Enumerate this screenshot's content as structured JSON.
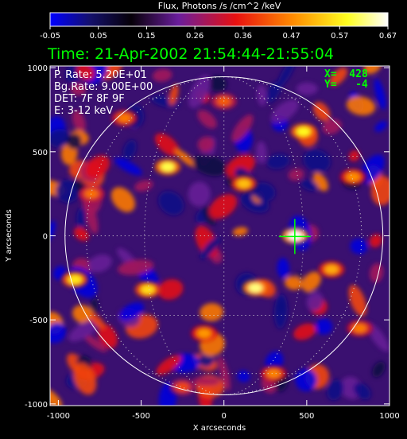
{
  "colorbar": {
    "title": "Flux, Photons /s /cm^2 /keV",
    "ticks": [
      "-0.05",
      "0.05",
      "0.15",
      "0.26",
      "0.36",
      "0.47",
      "0.57",
      "0.67"
    ]
  },
  "time_label": "Time: 21-Apr-2002 21:54:44-21:55:04",
  "info": {
    "p_rate": "P. Rate:  5.20E+01",
    "bg_rate": "Bg.Rate:  9.00E+00",
    "det": "DET: 7F 8F 9F",
    "energy": "E: 3-12 keV"
  },
  "cursor": {
    "x_label": "X=  428",
    "y_label": "Y=   -4"
  },
  "chart_data": {
    "type": "heatmap",
    "title": "Flux, Photons /s /cm^2 /keV",
    "xlabel": "X arcseconds",
    "ylabel": "Y arcseconds",
    "xlim": [
      -1050,
      1000
    ],
    "ylim": [
      -1010,
      1010
    ],
    "x_ticks": [
      "-1000",
      "-500",
      "0",
      "500",
      "1000"
    ],
    "y_ticks": [
      "-1000",
      "-500",
      "0",
      "500",
      "1000"
    ],
    "x_tick_values": [
      -1000,
      -500,
      0,
      500,
      1000
    ],
    "y_tick_values": [
      -1000,
      -500,
      0,
      500,
      1000
    ],
    "color_range": [
      -0.05,
      0.67
    ],
    "colormap": [
      "#0000ff",
      "#1a0070",
      "#000000",
      "#7a1aa6",
      "#ff0000",
      "#ffa500",
      "#ffff00",
      "#ffffff"
    ],
    "solar_limb_radius": 960,
    "cursor_position": [
      428,
      -4
    ],
    "hot_spots": [
      {
        "x": 430,
        "y": 0,
        "value": 0.67
      },
      {
        "x": -340,
        "y": 410,
        "value": 0.6
      },
      {
        "x": 480,
        "y": 620,
        "value": 0.58
      },
      {
        "x": 190,
        "y": -310,
        "value": 0.62
      },
      {
        "x": -900,
        "y": -260,
        "value": 0.56
      },
      {
        "x": -460,
        "y": -320,
        "value": 0.55
      },
      {
        "x": 120,
        "y": 310,
        "value": 0.52
      },
      {
        "x": 650,
        "y": -200,
        "value": 0.5
      },
      {
        "x": -120,
        "y": -580,
        "value": 0.48
      },
      {
        "x": 780,
        "y": 350,
        "value": 0.47
      },
      {
        "x": -600,
        "y": 700,
        "value": 0.45
      },
      {
        "x": 300,
        "y": -820,
        "value": 0.46
      },
      {
        "x": 820,
        "y": -550,
        "value": 0.45
      },
      {
        "x": -800,
        "y": 250,
        "value": 0.44
      },
      {
        "x": 0,
        "y": 800,
        "value": 0.42
      },
      {
        "x": -250,
        "y": -900,
        "value": 0.4
      }
    ],
    "grid": true
  },
  "colors": {
    "time_text": "#00ff00",
    "cursor": "#00ff00",
    "limb": "#ffffff"
  }
}
